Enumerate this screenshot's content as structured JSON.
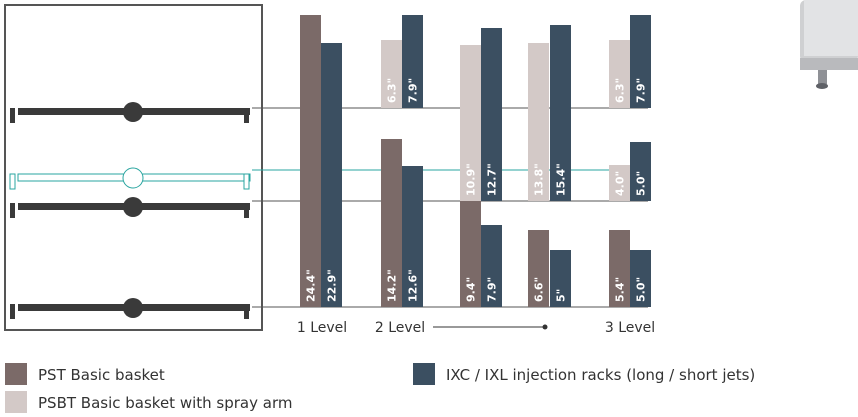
{
  "axis_labels": [
    "1 Level",
    "2 Level",
    "3 Level"
  ],
  "legend": [
    "PST Basic basket",
    "PSBT Basic basket with spray arm",
    "IXC / IXL injection racks (long / short  jets)"
  ],
  "bars": [
    "24.4\"",
    "22.9\"",
    "14.2\"",
    "12.6\"",
    "6.3\"",
    "7.9\"",
    "9.4\"",
    "7.9\"",
    "10.9\"",
    "12.7\"",
    "6.6\"",
    "5\"",
    "13.8\"",
    "15.4\"",
    "5.4\"",
    "5.0\"",
    "4.0\"",
    "5.0\"",
    "6.3\"",
    "7.9\""
  ]
}
